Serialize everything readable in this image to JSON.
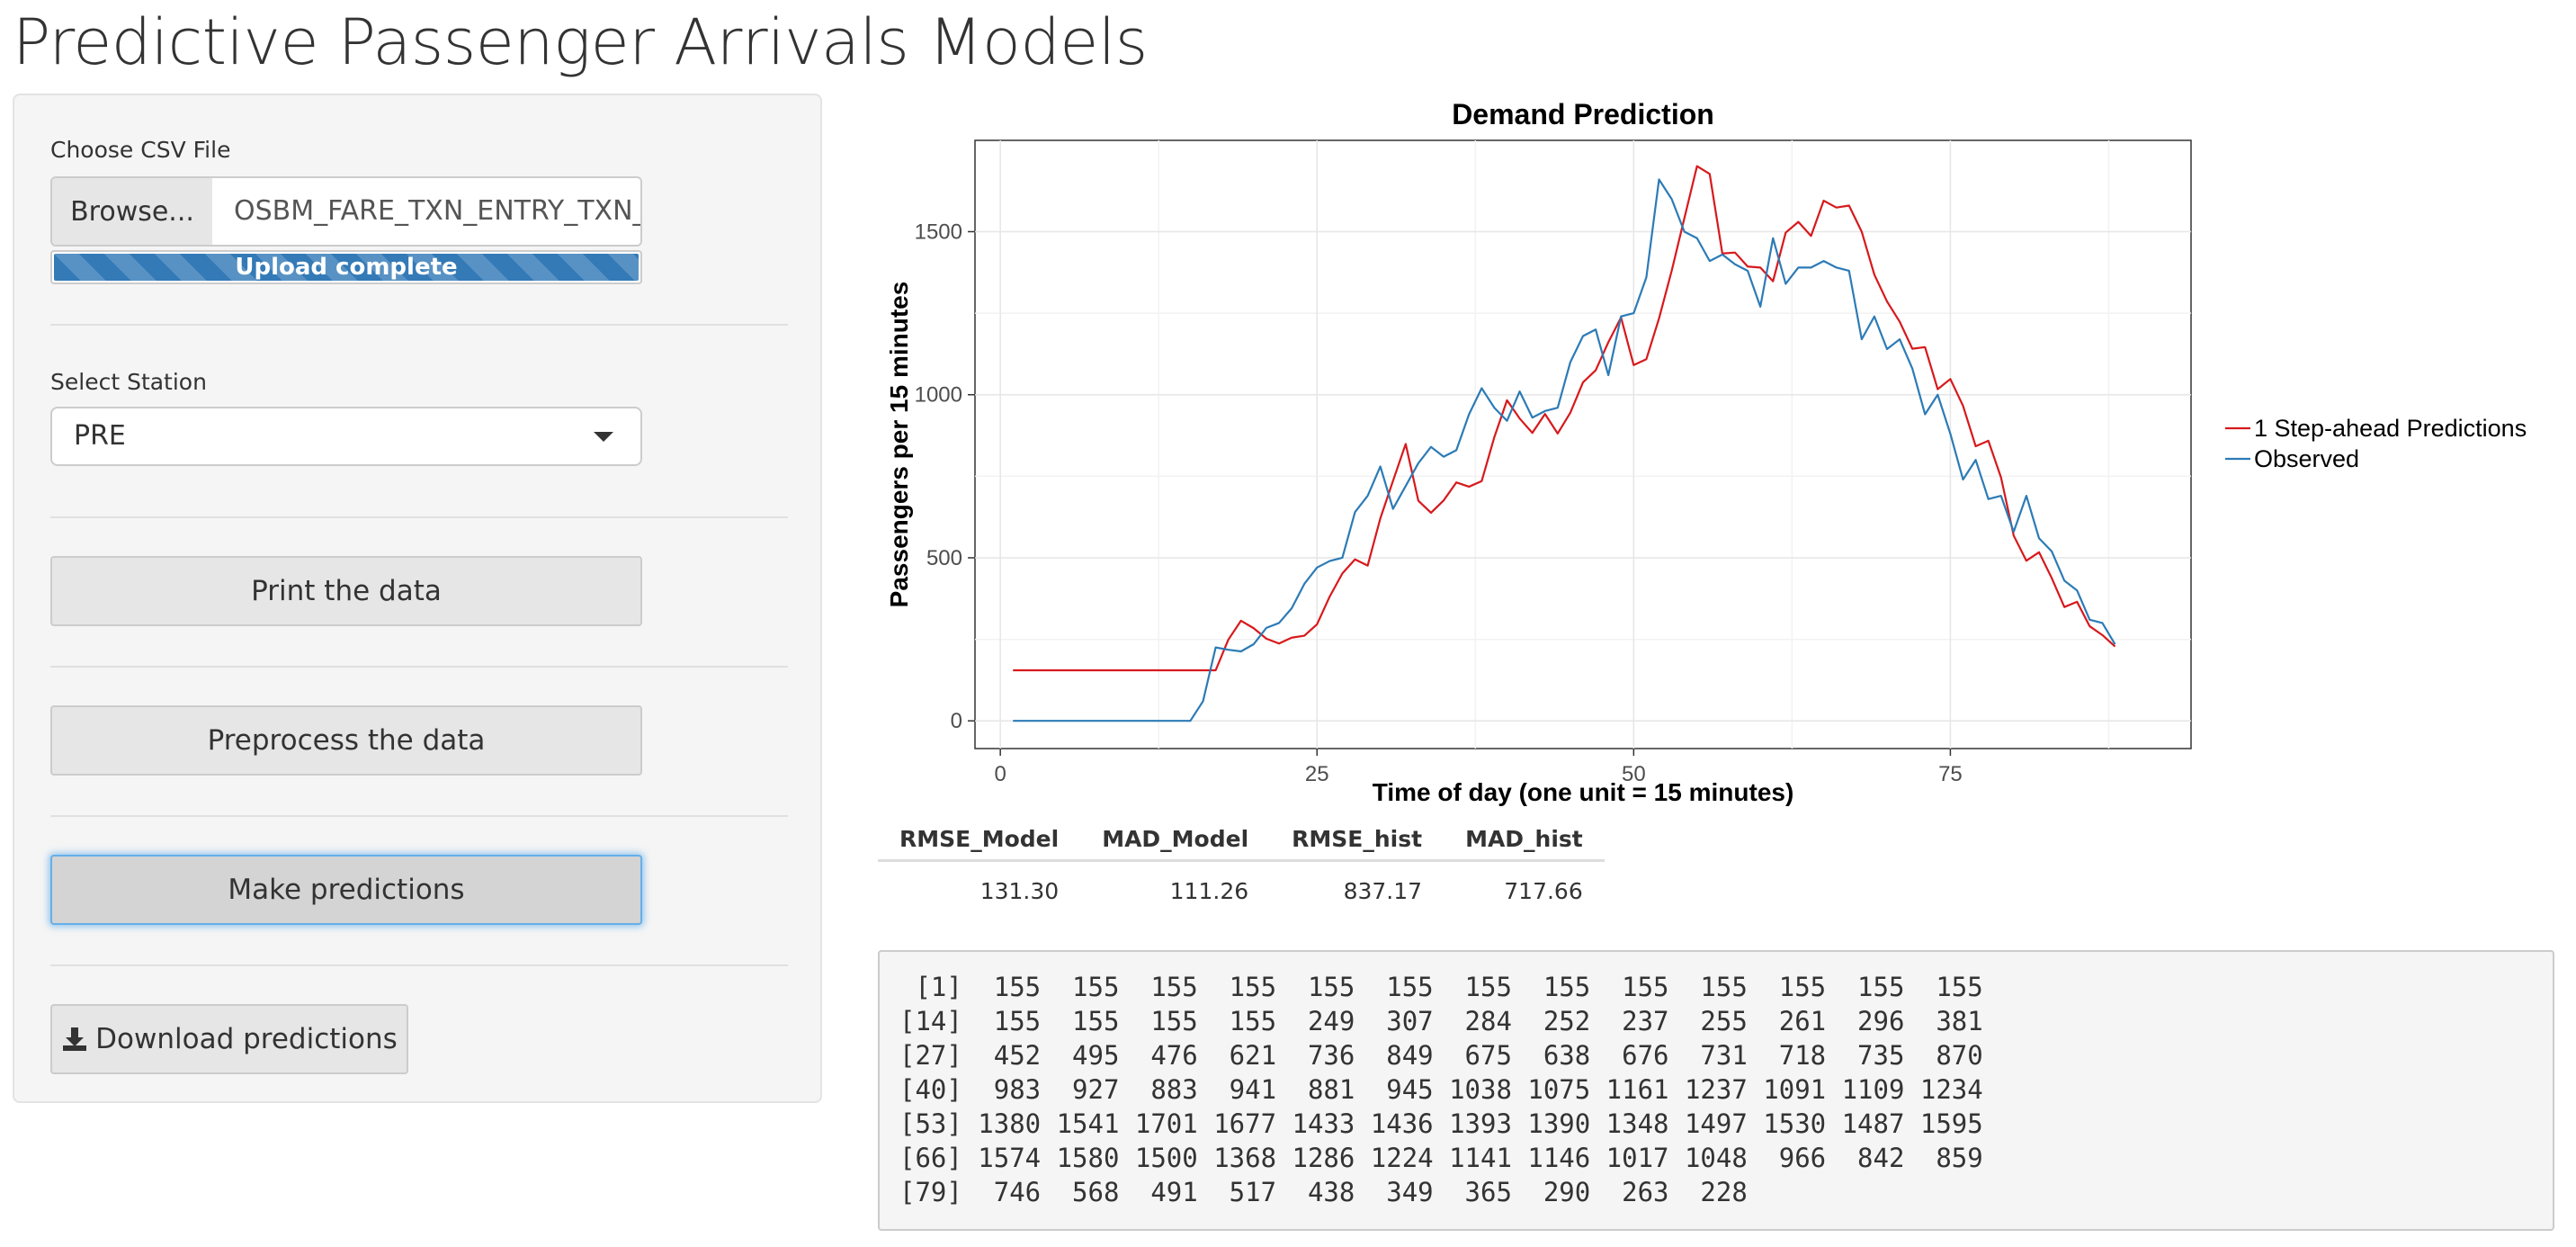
{
  "page": {
    "title": "Predictive Passenger Arrivals Models"
  },
  "sidebar": {
    "file_input": {
      "label": "Choose CSV File",
      "browse_label": "Browse...",
      "file_name": "OSBM_FARE_TXN_ENTRY_TXN_",
      "progress_text": "Upload complete",
      "progress_value": 1.0
    },
    "station_select": {
      "label": "Select Station",
      "selected": "PRE"
    },
    "buttons": {
      "print": "Print the data",
      "preprocess": "Preprocess the data",
      "predict": "Make predictions",
      "download": "Download predictions"
    },
    "icons": {
      "download": "download-icon",
      "select_caret": "caret-down-icon"
    }
  },
  "chart_data": {
    "type": "line",
    "title": "Demand Prediction",
    "xlabel": "Time of day (one unit = 15 minutes)",
    "ylabel": "Passengers per 15 minutes",
    "xlim": [
      -2,
      94
    ],
    "ylim": [
      -85,
      1780
    ],
    "x_ticks": [
      0,
      25,
      50,
      75
    ],
    "y_ticks": [
      0,
      500,
      1000,
      1500
    ],
    "grid": true,
    "legend_position": "right",
    "x": [
      1,
      2,
      3,
      4,
      5,
      6,
      7,
      8,
      9,
      10,
      11,
      12,
      13,
      14,
      15,
      16,
      17,
      18,
      19,
      20,
      21,
      22,
      23,
      24,
      25,
      26,
      27,
      28,
      29,
      30,
      31,
      32,
      33,
      34,
      35,
      36,
      37,
      38,
      39,
      40,
      41,
      42,
      43,
      44,
      45,
      46,
      47,
      48,
      49,
      50,
      51,
      52,
      53,
      54,
      55,
      56,
      57,
      58,
      59,
      60,
      61,
      62,
      63,
      64,
      65,
      66,
      67,
      68,
      69,
      70,
      71,
      72,
      73,
      74,
      75,
      76,
      77,
      78,
      79,
      80,
      81,
      82,
      83,
      84,
      85,
      86,
      87,
      88
    ],
    "series": [
      {
        "name": "1 Step-ahead Predictions",
        "color": "#d7191c",
        "values": [
          155,
          155,
          155,
          155,
          155,
          155,
          155,
          155,
          155,
          155,
          155,
          155,
          155,
          155,
          155,
          155,
          155,
          249,
          307,
          284,
          252,
          237,
          255,
          261,
          296,
          381,
          452,
          495,
          476,
          621,
          736,
          849,
          675,
          638,
          676,
          731,
          718,
          735,
          870,
          983,
          927,
          883,
          941,
          881,
          945,
          1038,
          1075,
          1161,
          1237,
          1091,
          1109,
          1234,
          1380,
          1541,
          1701,
          1677,
          1433,
          1436,
          1393,
          1390,
          1348,
          1497,
          1530,
          1487,
          1595,
          1574,
          1580,
          1500,
          1368,
          1286,
          1224,
          1141,
          1146,
          1017,
          1048,
          966,
          842,
          859,
          746,
          568,
          491,
          517,
          438,
          349,
          365,
          290,
          263,
          228
        ]
      },
      {
        "name": "Observed",
        "color": "#2c7bb6",
        "values": [
          0,
          0,
          0,
          0,
          0,
          0,
          0,
          0,
          0,
          0,
          0,
          0,
          0,
          0,
          0,
          60,
          225,
          218,
          213,
          235,
          285,
          300,
          345,
          420,
          470,
          490,
          500,
          640,
          690,
          780,
          650,
          720,
          790,
          840,
          810,
          830,
          940,
          1020,
          960,
          920,
          1010,
          930,
          950,
          960,
          1100,
          1180,
          1200,
          1060,
          1240,
          1250,
          1360,
          1660,
          1600,
          1500,
          1480,
          1410,
          1430,
          1400,
          1380,
          1270,
          1480,
          1340,
          1390,
          1390,
          1410,
          1390,
          1380,
          1170,
          1240,
          1140,
          1170,
          1080,
          940,
          1000,
          880,
          740,
          800,
          680,
          690,
          580,
          690,
          560,
          520,
          430,
          400,
          310,
          300,
          235
        ]
      }
    ]
  },
  "metrics": {
    "headers": [
      "RMSE_Model",
      "MAD_Model",
      "RMSE_hist",
      "MAD_hist"
    ],
    "values": [
      "131.30",
      "111.26",
      "837.17",
      "717.66"
    ]
  },
  "console": {
    "lines": [
      " [1]  155  155  155  155  155  155  155  155  155  155  155  155  155",
      "[14]  155  155  155  155  249  307  284  252  237  255  261  296  381",
      "[27]  452  495  476  621  736  849  675  638  676  731  718  735  870",
      "[40]  983  927  883  941  881  945 1038 1075 1161 1237 1091 1109 1234",
      "[53] 1380 1541 1701 1677 1433 1436 1393 1390 1348 1497 1530 1487 1595",
      "[66] 1574 1580 1500 1368 1286 1224 1141 1146 1017 1048  966  842  859",
      "[79]  746  568  491  517  438  349  365  290  263  228"
    ]
  }
}
